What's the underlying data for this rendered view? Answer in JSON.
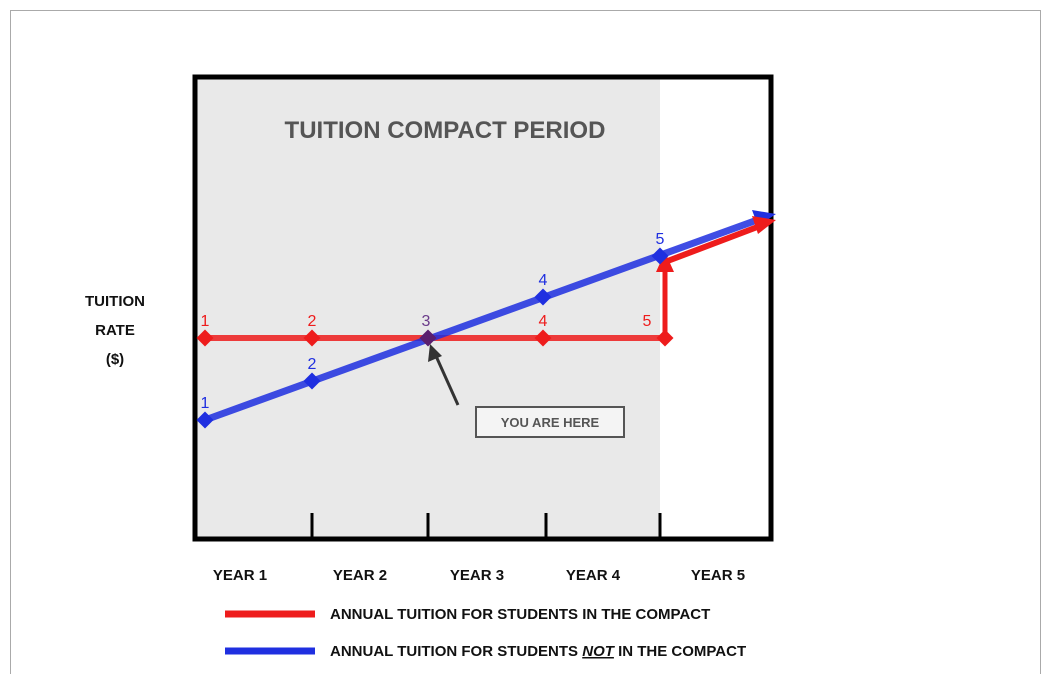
{
  "title": "TUITION COMPACT PERIOD",
  "y_axis_label": [
    "TUITION",
    "RATE",
    "($)"
  ],
  "x_labels": [
    "YEAR 1",
    "YEAR 2",
    "YEAR 3",
    "YEAR 4",
    "YEAR 5"
  ],
  "series": [
    {
      "name": "ANNUAL TUITION FOR STUDENTS IN THE COMPACT",
      "color": "#ee1c1c",
      "point_labels": [
        "1",
        "2",
        "4",
        "5"
      ]
    },
    {
      "name_parts": [
        "ANNUAL TUITION FOR STUDENTS",
        "NOT",
        "IN THE COMPACT"
      ],
      "color": "#1f2fe0",
      "point_labels": [
        "1",
        "2",
        "4",
        "5"
      ]
    }
  ],
  "intersection_label": "3",
  "callout": "YOU ARE HERE"
}
